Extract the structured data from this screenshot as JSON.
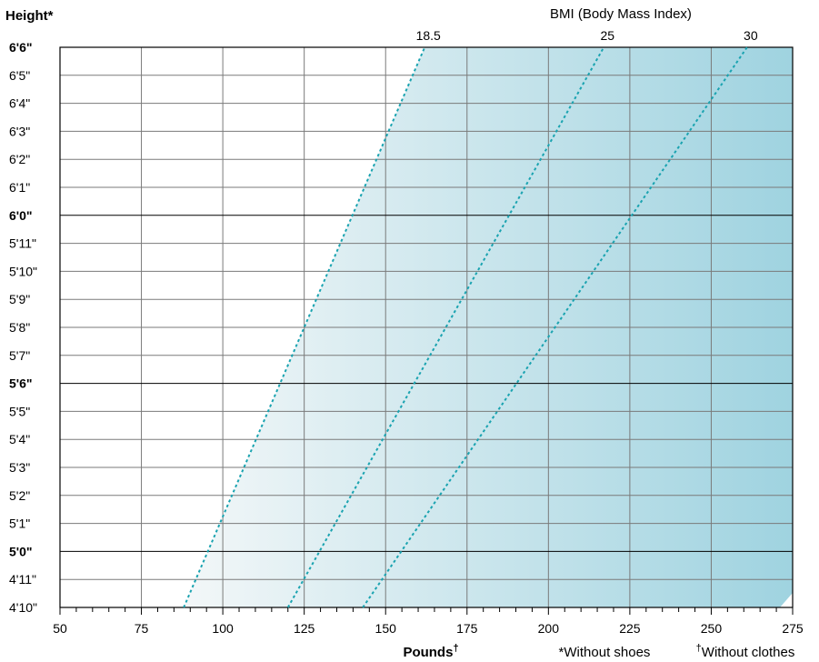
{
  "chart_data": {
    "type": "line",
    "title": "BMI (Body Mass Index)",
    "ylabel": "Height*",
    "xlabel": "Pounds",
    "xlabel_mark": "†",
    "footnotes": {
      "shoes": "*Without shoes",
      "clothes_mark": "†",
      "clothes": "Without clothes"
    },
    "xlim": [
      50,
      275
    ],
    "ylim": [
      58,
      78
    ],
    "x_ticks": [
      50,
      75,
      100,
      125,
      150,
      175,
      200,
      225,
      250,
      275
    ],
    "y_ticks": [
      {
        "label": "4'10\"",
        "inches": 58,
        "bold": false
      },
      {
        "label": "4'11\"",
        "inches": 59,
        "bold": false
      },
      {
        "label": "5'0\"",
        "inches": 60,
        "bold": true
      },
      {
        "label": "5'1\"",
        "inches": 61,
        "bold": false
      },
      {
        "label": "5'2\"",
        "inches": 62,
        "bold": false
      },
      {
        "label": "5'3\"",
        "inches": 63,
        "bold": false
      },
      {
        "label": "5'4\"",
        "inches": 64,
        "bold": false
      },
      {
        "label": "5'5\"",
        "inches": 65,
        "bold": false
      },
      {
        "label": "5'6\"",
        "inches": 66,
        "bold": true
      },
      {
        "label": "5'7\"",
        "inches": 67,
        "bold": false
      },
      {
        "label": "5'8\"",
        "inches": 68,
        "bold": false
      },
      {
        "label": "5'9\"",
        "inches": 69,
        "bold": false
      },
      {
        "label": "5'10\"",
        "inches": 70,
        "bold": false
      },
      {
        "label": "5'11\"",
        "inches": 71,
        "bold": false
      },
      {
        "label": "6'0\"",
        "inches": 72,
        "bold": true
      },
      {
        "label": "6'1\"",
        "inches": 73,
        "bold": false
      },
      {
        "label": "6'2\"",
        "inches": 74,
        "bold": false
      },
      {
        "label": "6'3\"",
        "inches": 75,
        "bold": false
      },
      {
        "label": "6'4\"",
        "inches": 76,
        "bold": false
      },
      {
        "label": "6'5\"",
        "inches": 77,
        "bold": false
      },
      {
        "label": "6'6\"",
        "inches": 78,
        "bold": true
      }
    ],
    "series": [
      {
        "name": "18.5",
        "bmi": 18.5,
        "points": [
          {
            "x": 88,
            "y": 58
          },
          {
            "x": 162,
            "y": 78
          }
        ]
      },
      {
        "name": "25",
        "bmi": 25,
        "points": [
          {
            "x": 120,
            "y": 58
          },
          {
            "x": 217,
            "y": 78
          }
        ]
      },
      {
        "name": "30",
        "bmi": 30,
        "points": [
          {
            "x": 143,
            "y": 58
          },
          {
            "x": 261,
            "y": 78
          }
        ]
      }
    ],
    "grid": true,
    "colors": {
      "line": "#1aa3b0",
      "fill_start": "#f3f7f8",
      "fill_end": "#9fd3e0",
      "grid": "#7a7a7a",
      "axis": "#000000"
    }
  }
}
